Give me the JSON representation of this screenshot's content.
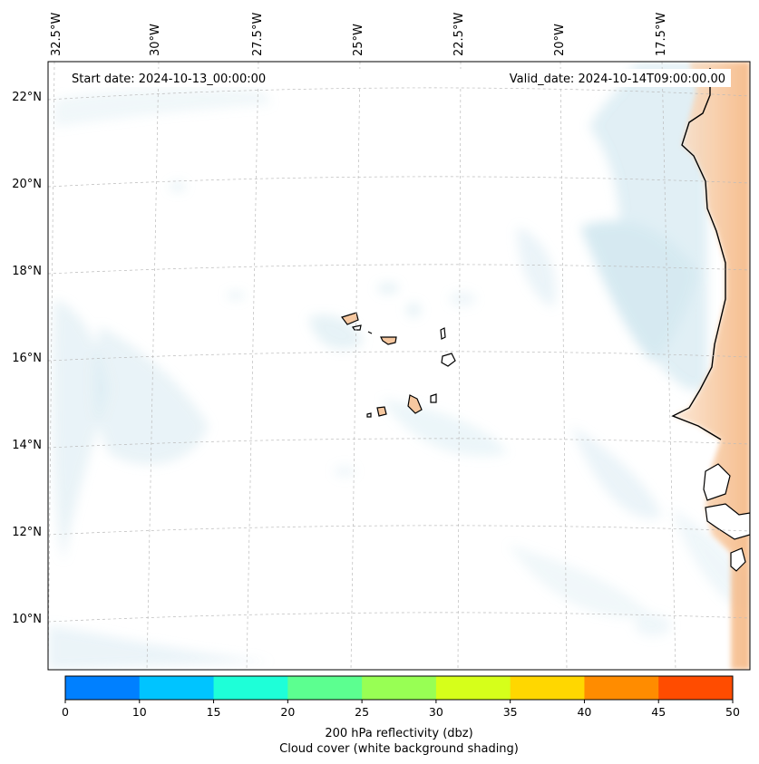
{
  "header": {
    "start_date": "Start date: 2024-10-13_00:00:00",
    "valid_date": "Valid_date: 2024-10-14T09:00:00.00"
  },
  "axes": {
    "lon_labels": [
      "32.5°W",
      "30°W",
      "27.5°W",
      "25°W",
      "22.5°W",
      "20°W",
      "17.5°W"
    ],
    "lat_labels": [
      "22°N",
      "20°N",
      "18°N",
      "16°N",
      "14°N",
      "12°N",
      "10°N"
    ]
  },
  "colorbar": {
    "ticks": [
      "0",
      "10",
      "15",
      "20",
      "25",
      "30",
      "35",
      "40",
      "45",
      "50"
    ],
    "colors": [
      "#0080ff",
      "#00c4ff",
      "#1effd8",
      "#5cff90",
      "#98ff54",
      "#d6ff1a",
      "#ffd700",
      "#ff8c00",
      "#ff4c00"
    ],
    "label_line1": "200 hPa reflectivity (dbz)",
    "label_line2": "Cloud cover (white background shading)"
  },
  "map_colors": {
    "cloud": "#cfe6ef",
    "land_fill": "#f6c8a0",
    "coast": "#000000",
    "grid": "#bbbbbb"
  }
}
